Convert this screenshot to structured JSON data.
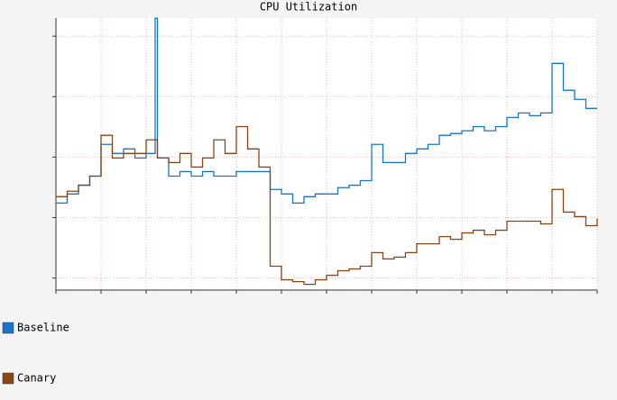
{
  "chart_data": {
    "type": "step-line",
    "title": "CPU Utilization",
    "xlim": [
      0,
      12
    ],
    "xticks": [
      0,
      1,
      2,
      3,
      4,
      5,
      6,
      7,
      8,
      9,
      10,
      11,
      12
    ],
    "ylim": [
      -4,
      86
    ],
    "yticks": [
      0,
      20,
      40,
      60,
      80
    ],
    "grid": true,
    "legend": "bottom-left",
    "series": [
      {
        "name": "Baseline",
        "color": "#1874cd",
        "x": [
          0,
          0.25,
          0.5,
          0.75,
          1,
          1.25,
          1.5,
          1.75,
          2,
          2.2,
          2.25,
          2.5,
          2.75,
          3,
          3.25,
          3.5,
          3.75,
          4,
          4.25,
          4.5,
          4.75,
          5,
          5.25,
          5.5,
          5.75,
          6,
          6.25,
          6.5,
          6.75,
          7,
          7.25,
          7.5,
          7.75,
          8,
          8.25,
          8.5,
          8.75,
          9,
          9.25,
          9.5,
          9.75,
          10,
          10.25,
          10.5,
          10.75,
          11,
          11.25,
          11.5,
          11.75,
          12
        ],
        "values": [
          24.8,
          27.8,
          30.7,
          33.7,
          44.2,
          41.2,
          42.7,
          39.7,
          41.2,
          85.9,
          39.7,
          33.7,
          35.2,
          33.7,
          35.2,
          33.7,
          33.7,
          35.2,
          35.2,
          35.2,
          29.3,
          27.8,
          24.8,
          26.9,
          27.8,
          27.8,
          29.9,
          30.7,
          32.2,
          44.2,
          38.2,
          38.2,
          41.2,
          42.7,
          44.2,
          47.2,
          47.8,
          48.7,
          50.1,
          48.7,
          50.1,
          53.1,
          54.6,
          53.7,
          54.6,
          71.0,
          62.1,
          59.1,
          56.1,
          56.1
        ]
      },
      {
        "name": "Canary",
        "color": "#8b4513",
        "x": [
          0,
          0.25,
          0.5,
          0.75,
          1,
          1.25,
          1.5,
          1.75,
          2,
          2.25,
          2.5,
          2.75,
          3,
          3.25,
          3.5,
          3.75,
          4,
          4.25,
          4.5,
          4.75,
          5,
          5.25,
          5.5,
          5.75,
          6,
          6.25,
          6.5,
          6.75,
          7,
          7.25,
          7.5,
          7.75,
          8,
          8.25,
          8.5,
          8.75,
          9,
          9.25,
          9.5,
          9.75,
          10,
          10.25,
          10.5,
          10.75,
          11,
          11.25,
          11.5,
          11.75,
          12
        ],
        "values": [
          26.9,
          28.7,
          30.7,
          33.7,
          47.2,
          39.7,
          41.2,
          41.2,
          45.7,
          39.7,
          38.2,
          41.2,
          36.7,
          39.7,
          45.7,
          41.2,
          50.1,
          42.7,
          36.7,
          3.9,
          -0.6,
          -1.2,
          -2.1,
          -0.6,
          0.9,
          2.4,
          3.0,
          3.9,
          8.4,
          6.3,
          6.9,
          8.4,
          11.3,
          11.3,
          13.7,
          12.8,
          14.9,
          15.8,
          14.3,
          15.8,
          18.8,
          18.8,
          18.8,
          17.9,
          29.3,
          21.8,
          20.3,
          17.3,
          19.7
        ]
      }
    ]
  }
}
